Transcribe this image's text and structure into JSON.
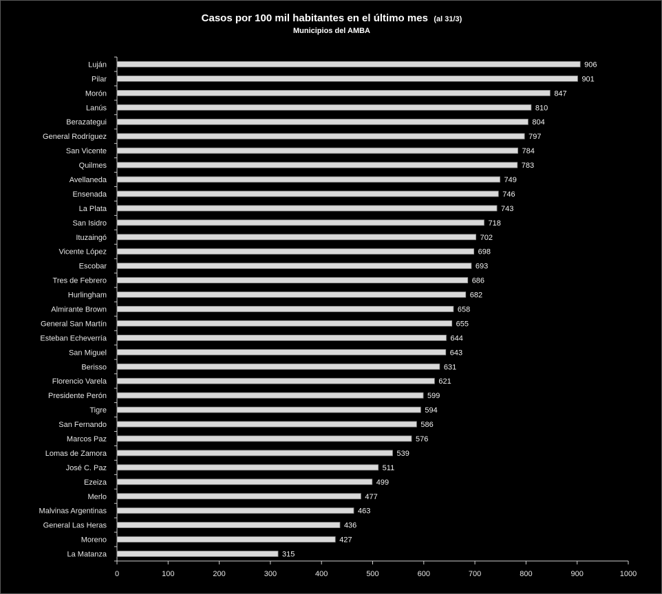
{
  "chart_data": {
    "type": "bar",
    "orientation": "horizontal",
    "title": "Casos por 100 mil habitantes en el último mes",
    "title_suffix": "(al 31/3)",
    "subtitle": "Municipios del AMBA",
    "xlabel": "",
    "ylabel": "",
    "xlim": [
      0,
      1000
    ],
    "xticks": [
      0,
      100,
      200,
      300,
      400,
      500,
      600,
      700,
      800,
      900,
      1000
    ],
    "grid": false,
    "legend": "none",
    "categories": [
      "Luján",
      "Pilar",
      "Morón",
      "Lanús",
      "Berazategui",
      "General Rodríguez",
      "San Vicente",
      "Quilmes",
      "Avellaneda",
      "Ensenada",
      "La Plata",
      "San Isidro",
      "Ituzaingó",
      "Vicente López",
      "Escobar",
      "Tres de Febrero",
      "Hurlingham",
      "Almirante Brown",
      "General San Martín",
      "Esteban Echeverría",
      "San Miguel",
      "Berisso",
      "Florencio Varela",
      "Presidente Perón",
      "Tigre",
      "San Fernando",
      "Marcos Paz",
      "Lomas de Zamora",
      "José C. Paz",
      "Ezeiza",
      "Merlo",
      "Malvinas Argentinas",
      "General Las Heras",
      "Moreno",
      "La Matanza"
    ],
    "values": [
      906,
      901,
      847,
      810,
      804,
      797,
      784,
      783,
      749,
      746,
      743,
      718,
      702,
      698,
      693,
      686,
      682,
      658,
      655,
      644,
      643,
      631,
      621,
      599,
      594,
      586,
      576,
      539,
      511,
      499,
      477,
      463,
      436,
      427,
      315
    ],
    "colors": {
      "background": "#000000",
      "bar_fill": "#d9d9d9",
      "bar_edge": "#8c8c8c",
      "axis": "#d0d0d0",
      "text": "#ffffff"
    }
  }
}
